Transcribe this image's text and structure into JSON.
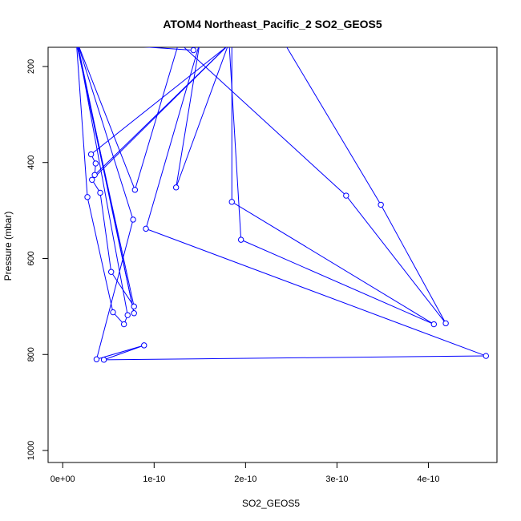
{
  "chart_data": {
    "type": "line",
    "title": "ATOM4 Northeast_Pacific_2 SO2_GEOS5",
    "xlabel": "SO2_GEOS5",
    "ylabel": "Pressure (mbar)",
    "xlim": [
      -1.6e-11,
      4.75e-10
    ],
    "ylim": [
      1025,
      160
    ],
    "y_reversed": true,
    "grid": false,
    "color": "#0000ff",
    "x_ticks": [
      {
        "value": 0,
        "label": "0e+00"
      },
      {
        "value": 1e-10,
        "label": "1e-10"
      },
      {
        "value": 2e-10,
        "label": "2e-10"
      },
      {
        "value": 3e-10,
        "label": "3e-10"
      },
      {
        "value": 4e-10,
        "label": "4e-10"
      }
    ],
    "y_ticks": [
      {
        "value": 200,
        "label": "200"
      },
      {
        "value": 400,
        "label": "400"
      },
      {
        "value": 600,
        "label": "600"
      },
      {
        "value": 800,
        "label": "800"
      },
      {
        "value": 1000,
        "label": "1000"
      }
    ],
    "series": [
      {
        "marker": "open-circle",
        "points": [
          {
            "x": 1.43e-10,
            "y": 166
          },
          {
            "x": 1.5e-11,
            "y": 150
          },
          {
            "x": 7.8e-11,
            "y": 714
          },
          {
            "x": 1.6e-11,
            "y": 150
          },
          {
            "x": 7.1e-11,
            "y": 718
          },
          {
            "x": 6.7e-11,
            "y": 737
          },
          {
            "x": 5.5e-11,
            "y": 712
          },
          {
            "x": 2.7e-11,
            "y": 472
          },
          {
            "x": 1.5e-11,
            "y": 150
          },
          {
            "x": 7.8e-11,
            "y": 700
          },
          {
            "x": 5.3e-11,
            "y": 628
          },
          {
            "x": 4.1e-11,
            "y": 463
          },
          {
            "x": 3.2e-11,
            "y": 436
          },
          {
            "x": 1.84e-10,
            "y": 150
          },
          {
            "x": 3.5e-11,
            "y": 426
          },
          {
            "x": 3.6e-11,
            "y": 402
          },
          {
            "x": 3.1e-11,
            "y": 383
          },
          {
            "x": 1.85e-10,
            "y": 150
          },
          {
            "x": 1.85e-10,
            "y": 482
          },
          {
            "x": 4.06e-10,
            "y": 737
          },
          {
            "x": 1.95e-10,
            "y": 561
          },
          {
            "x": 1.82e-10,
            "y": 150
          },
          {
            "x": 1.24e-10,
            "y": 452
          },
          {
            "x": 1.5e-10,
            "y": 150
          },
          {
            "x": 9.1e-11,
            "y": 538
          },
          {
            "x": 4.63e-10,
            "y": 803
          },
          {
            "x": 4.5e-11,
            "y": 811
          },
          {
            "x": 8.9e-11,
            "y": 781
          },
          {
            "x": 3.7e-11,
            "y": 810
          },
          {
            "x": 7.7e-11,
            "y": 519
          },
          {
            "x": 1.6e-11,
            "y": 150
          },
          {
            "x": 7.9e-11,
            "y": 457
          },
          {
            "x": 1.27e-10,
            "y": 150
          },
          {
            "x": 3.1e-10,
            "y": 469
          },
          {
            "x": 4.19e-10,
            "y": 735
          },
          {
            "x": 3.48e-10,
            "y": 488
          },
          {
            "x": 2.42e-10,
            "y": 150
          }
        ]
      }
    ]
  }
}
